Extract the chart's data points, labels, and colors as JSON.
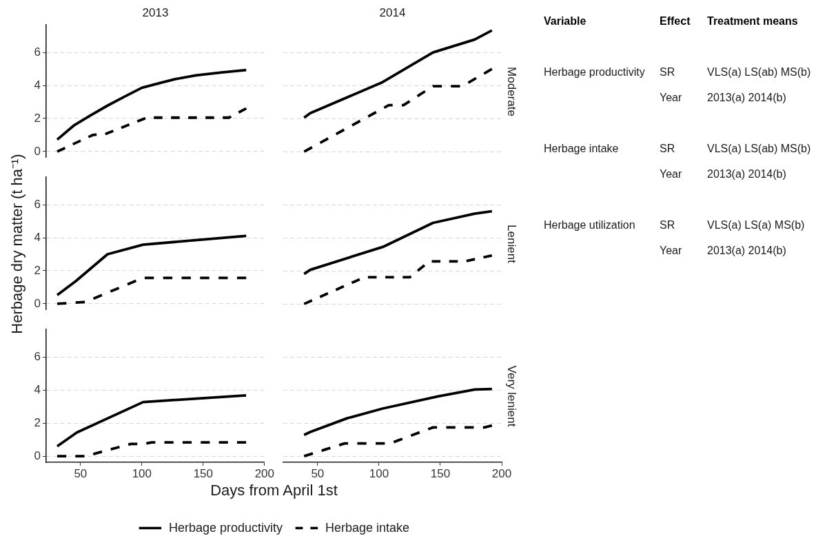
{
  "chart_data": [
    {
      "type": "line",
      "title": "2013",
      "xlim": [
        22,
        200
      ],
      "xticks": [
        50,
        100,
        150,
        200
      ],
      "ylim": [
        -0.37,
        7.67
      ],
      "yticks": [
        0,
        2,
        4,
        6
      ],
      "grid": "y",
      "tick_labels": "y",
      "series": [
        {
          "color": "#000000",
          "line_style": "solid",
          "x": [
            31,
            45,
            58,
            72,
            86,
            100,
            116,
            127,
            144,
            165,
            185
          ],
          "values": [
            0.72,
            1.6,
            2.18,
            2.78,
            3.33,
            3.86,
            4.17,
            4.38,
            4.61,
            4.79,
            4.93
          ]
        },
        {
          "color": "#000000",
          "line_style": "dashed",
          "x": [
            31,
            60,
            71,
            104,
            171,
            185
          ],
          "values": [
            0,
            1.0,
            1.08,
            2.05,
            2.05,
            2.61
          ]
        }
      ]
    },
    {
      "type": "line",
      "title": "2014",
      "annotations": [
        "Moderate"
      ],
      "xlim": [
        22,
        200
      ],
      "xticks": [
        50,
        100,
        150,
        200
      ],
      "yticks": [
        0,
        2,
        4,
        6
      ],
      "grid": "y",
      "tick_labels": false,
      "series": [
        {
          "color": "#000000",
          "line_style": "solid",
          "x": [
            39,
            44,
            102,
            144,
            178,
            192
          ],
          "values": [
            2.06,
            2.33,
            4.17,
            6.0,
            6.78,
            7.33
          ]
        },
        {
          "color": "#000000",
          "line_style": "dashed",
          "x": [
            39,
            108,
            120,
            144,
            168,
            192
          ],
          "values": [
            0,
            2.81,
            2.81,
            3.96,
            3.96,
            5.0
          ]
        }
      ]
    },
    {
      "type": "line",
      "ylabel": "Herbage dry matter (t ha⁻¹)",
      "xlim": [
        22,
        200
      ],
      "xticks": [
        50,
        100,
        150,
        200
      ],
      "ylim": [
        -0.37,
        7.67
      ],
      "yticks": [
        0,
        2,
        4,
        6
      ],
      "grid": "y",
      "tick_labels": "y",
      "series": [
        {
          "color": "#000000",
          "line_style": "solid",
          "x": [
            31,
            46,
            72,
            101,
            185
          ],
          "values": [
            0.53,
            1.36,
            3.0,
            3.58,
            4.11
          ]
        },
        {
          "color": "#000000",
          "line_style": "dashed",
          "x": [
            31,
            54,
            101,
            185
          ],
          "values": [
            0,
            0.11,
            1.57,
            1.57
          ]
        }
      ]
    },
    {
      "type": "line",
      "annotations": [
        "Lenient"
      ],
      "xlim": [
        22,
        200
      ],
      "xticks": [
        50,
        100,
        150,
        200
      ],
      "yticks": [
        0,
        2,
        4,
        6
      ],
      "grid": "y",
      "tick_labels": false,
      "series": [
        {
          "color": "#000000",
          "line_style": "solid",
          "x": [
            39,
            44,
            104,
            144,
            178,
            192
          ],
          "values": [
            1.81,
            2.06,
            3.47,
            4.9,
            5.46,
            5.6
          ]
        },
        {
          "color": "#000000",
          "line_style": "dashed",
          "x": [
            39,
            88,
            125,
            141,
            170,
            192
          ],
          "values": [
            0,
            1.61,
            1.61,
            2.57,
            2.57,
            2.93
          ]
        }
      ]
    },
    {
      "type": "line",
      "xlabel": "Days from April 1st",
      "legend": "bottom",
      "xlim": [
        22,
        200
      ],
      "xticks": [
        50,
        100,
        150,
        200
      ],
      "ylim": [
        -0.37,
        7.67
      ],
      "yticks": [
        0,
        2,
        4,
        6
      ],
      "grid": "y",
      "series": [
        {
          "name": "Herbage productivity",
          "color": "#000000",
          "line_style": "solid",
          "x": [
            31,
            47,
            101,
            185
          ],
          "values": [
            0.6,
            1.43,
            3.27,
            3.68
          ]
        },
        {
          "name": "Herbage intake",
          "color": "#000000",
          "line_style": "dashed",
          "x": [
            31,
            54,
            91,
            101,
            108,
            185
          ],
          "values": [
            0,
            0,
            0.74,
            0.74,
            0.83,
            0.83
          ]
        }
      ]
    },
    {
      "type": "line",
      "annotations": [
        "Very lenient"
      ],
      "xlim": [
        22,
        200
      ],
      "xticks": [
        50,
        100,
        150,
        200
      ],
      "yticks": [
        0,
        2,
        4,
        6
      ],
      "grid": "y",
      "tick_labels": "x",
      "series": [
        {
          "color": "#000000",
          "line_style": "solid",
          "x": [
            39,
            44,
            74,
            103,
            148,
            178,
            192
          ],
          "values": [
            1.29,
            1.46,
            2.29,
            2.88,
            3.61,
            4.03,
            4.06
          ]
        },
        {
          "color": "#000000",
          "line_style": "dashed",
          "x": [
            39,
            72,
            109,
            144,
            186,
            192
          ],
          "values": [
            0,
            0.77,
            0.77,
            1.74,
            1.74,
            1.85
          ]
        }
      ]
    },
    {
      "type": "other",
      "annotations": [
        "Variable",
        "Effect",
        "Treatment means",
        "Herbage productivity",
        "SR",
        "VLS(a) LS(ab) MS(b)",
        "Year",
        "2013(a) 2014(b)",
        "Herbage intake",
        "SR",
        "VLS(a) LS(ab) MS(b)",
        "Year",
        "2013(a) 2014(b)",
        "Herbage utilization",
        "SR",
        "VLS(a) LS(a) MS(b)",
        "Year",
        "2013(a) 2014(b)"
      ]
    }
  ]
}
